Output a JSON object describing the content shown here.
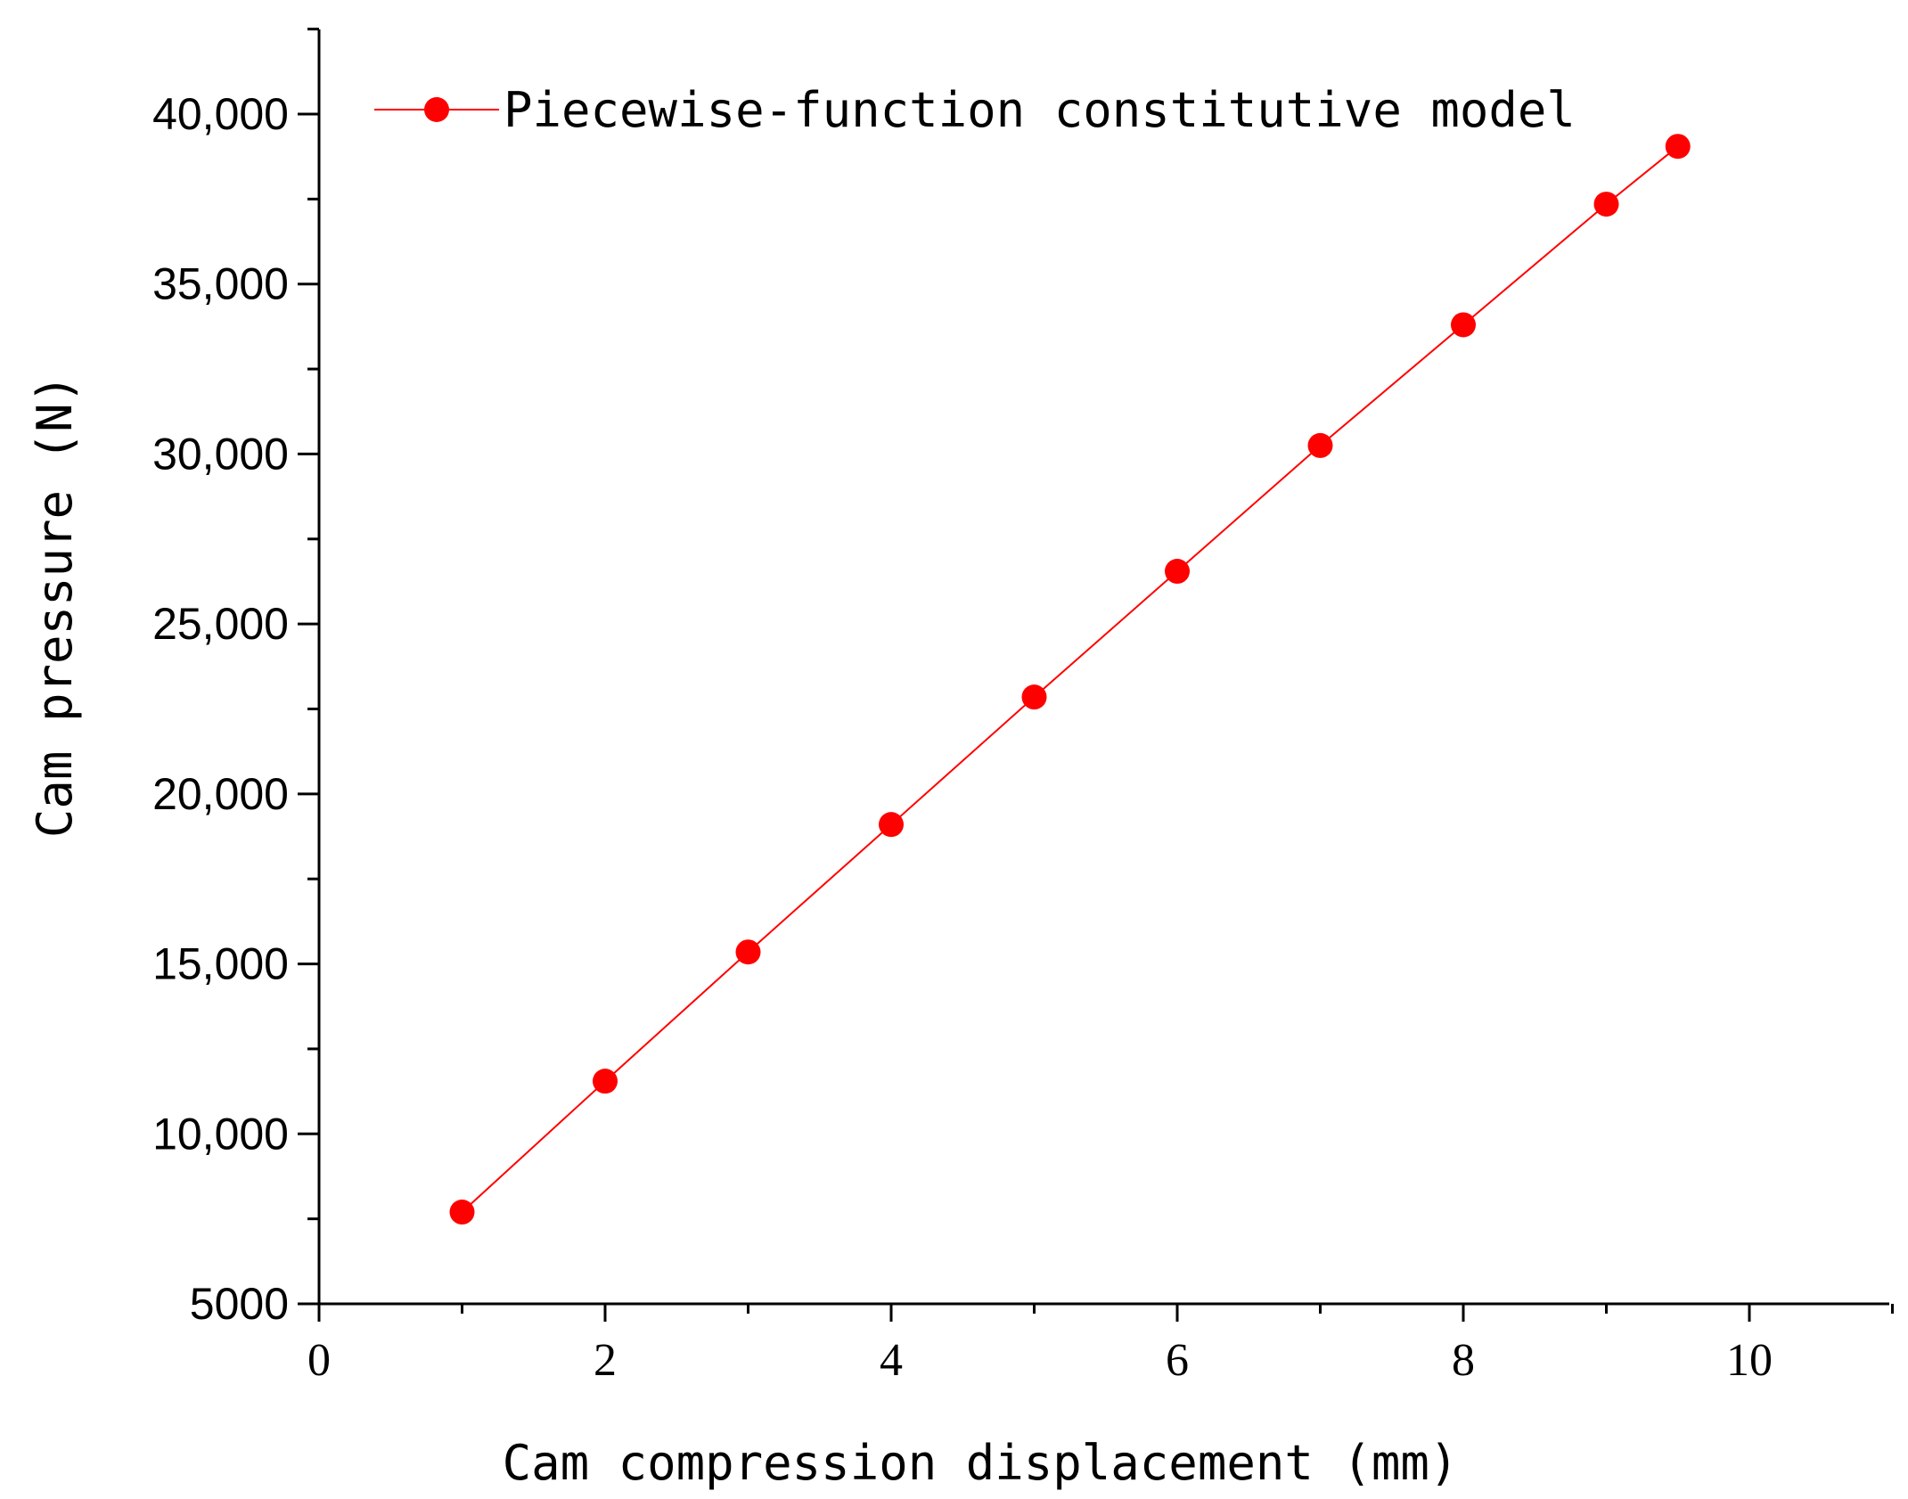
{
  "chart_data": {
    "type": "line",
    "title": "",
    "xlabel": "Cam compression displacement (mm)",
    "ylabel": "Cam pressure (N)",
    "xlim": [
      0,
      11
    ],
    "ylim": [
      5000,
      42500
    ],
    "x_ticks": [
      0,
      2,
      4,
      6,
      8,
      10
    ],
    "x_tick_labels": [
      "0",
      "2",
      "4",
      "6",
      "8",
      "10"
    ],
    "y_ticks": [
      5000,
      10000,
      15000,
      20000,
      25000,
      30000,
      35000,
      40000
    ],
    "y_tick_labels": [
      "5000",
      "10,000",
      "15,000",
      "20,000",
      "25,000",
      "30,000",
      "35,000",
      "40,000"
    ],
    "grid": false,
    "legend_position": "top-left",
    "series": [
      {
        "name": "Piecewise-function constitutive model",
        "color": "#ff0000",
        "x": [
          1,
          2,
          3,
          4,
          5,
          6,
          7,
          8,
          9,
          9.5
        ],
        "y": [
          7700,
          11550,
          15350,
          19100,
          22850,
          26550,
          30250,
          33800,
          37350,
          39050
        ]
      }
    ]
  }
}
